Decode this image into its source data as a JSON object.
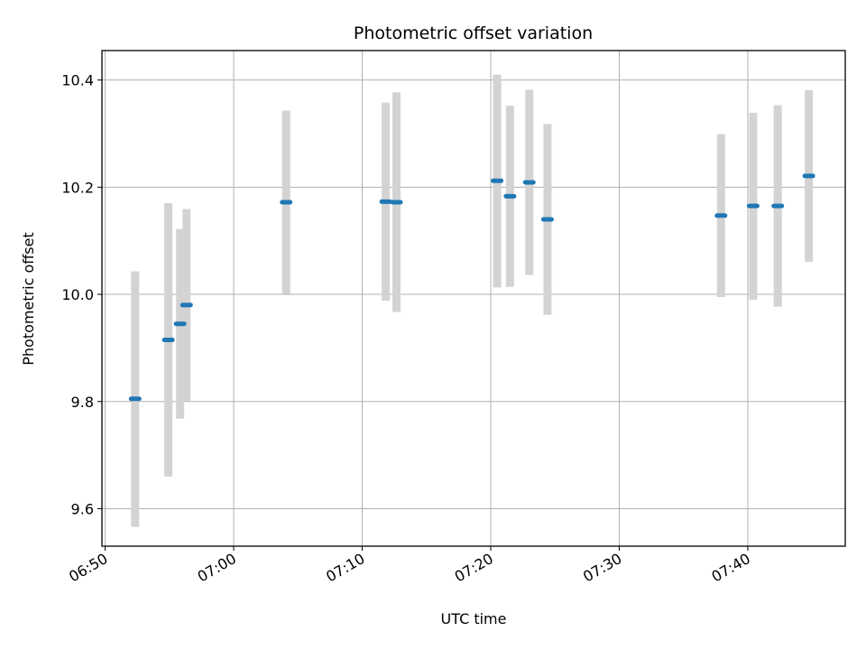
{
  "chart_data": {
    "type": "scatter",
    "title": "Photometric offset variation",
    "xlabel": "UTC time",
    "ylabel": "Photometric offset",
    "xlim": [
      "06:49:45",
      "07:47:35"
    ],
    "ylim": [
      9.53,
      10.455
    ],
    "x_ticks": [
      "06:50",
      "07:00",
      "07:10",
      "07:20",
      "07:30",
      "07:40"
    ],
    "y_ticks": [
      9.6,
      9.8,
      10.0,
      10.2,
      10.4
    ],
    "grid": true,
    "marker_color": "#1f77b4",
    "errorbar_color": "#d3d3d3",
    "points": [
      {
        "t": "06:52:20",
        "y": 9.805,
        "lo": 9.566,
        "hi": 10.043
      },
      {
        "t": "06:54:55",
        "y": 9.915,
        "lo": 9.66,
        "hi": 10.17
      },
      {
        "t": "06:55:50",
        "y": 9.945,
        "lo": 9.768,
        "hi": 10.122
      },
      {
        "t": "06:56:20",
        "y": 9.98,
        "lo": 9.801,
        "hi": 10.159
      },
      {
        "t": "07:04:05",
        "y": 10.172,
        "lo": 10.001,
        "hi": 10.343
      },
      {
        "t": "07:11:50",
        "y": 10.173,
        "lo": 9.988,
        "hi": 10.358
      },
      {
        "t": "07:12:40",
        "y": 10.172,
        "lo": 9.967,
        "hi": 10.377
      },
      {
        "t": "07:20:30",
        "y": 10.212,
        "lo": 10.013,
        "hi": 10.41
      },
      {
        "t": "07:21:30",
        "y": 10.183,
        "lo": 10.014,
        "hi": 10.352
      },
      {
        "t": "07:23:00",
        "y": 10.209,
        "lo": 10.036,
        "hi": 10.382
      },
      {
        "t": "07:24:25",
        "y": 10.14,
        "lo": 9.962,
        "hi": 10.318
      },
      {
        "t": "07:37:55",
        "y": 10.147,
        "lo": 9.995,
        "hi": 10.299
      },
      {
        "t": "07:40:25",
        "y": 10.165,
        "lo": 9.99,
        "hi": 10.339
      },
      {
        "t": "07:42:20",
        "y": 10.165,
        "lo": 9.977,
        "hi": 10.353
      },
      {
        "t": "07:44:45",
        "y": 10.221,
        "lo": 10.061,
        "hi": 10.381
      }
    ]
  }
}
